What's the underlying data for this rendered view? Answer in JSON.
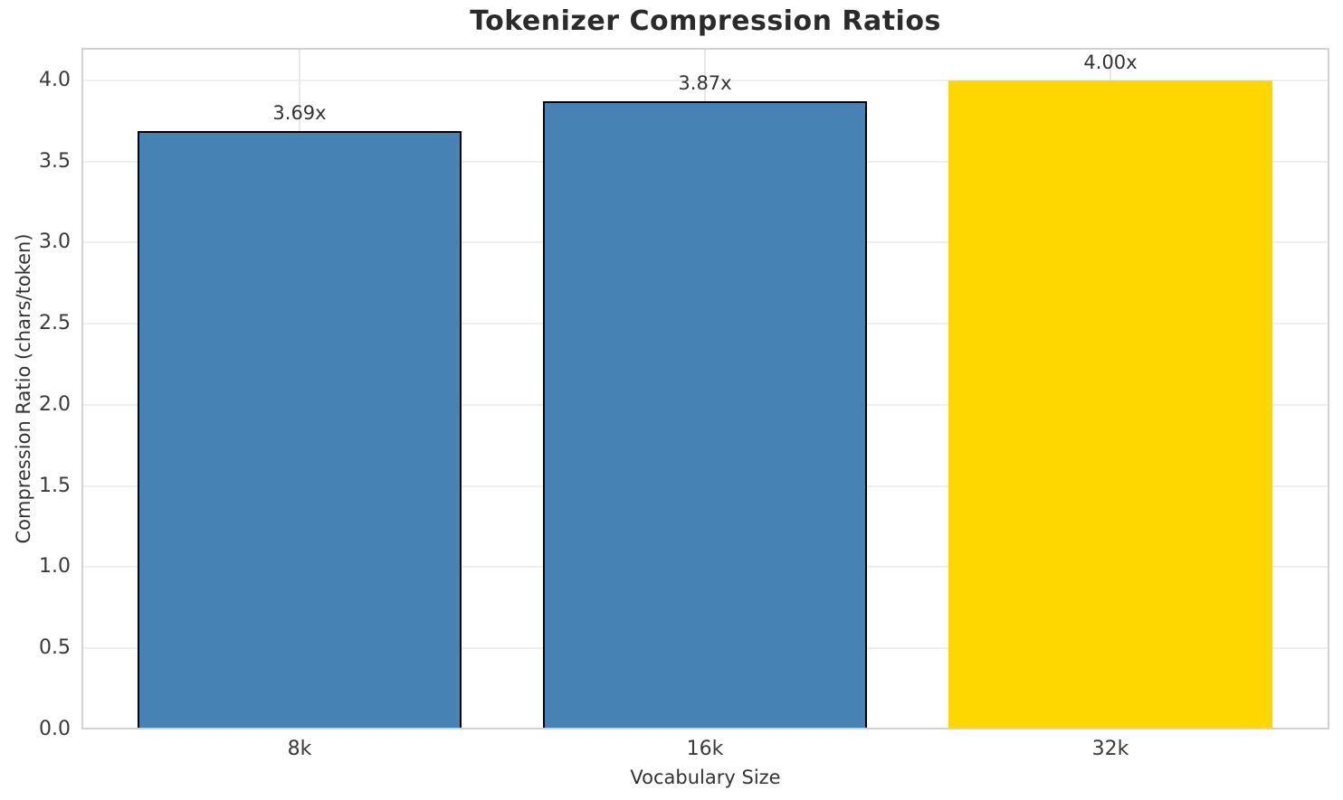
{
  "chart_data": {
    "type": "bar",
    "title": "Tokenizer Compression Ratios",
    "xlabel": "Vocabulary Size",
    "ylabel": "Compression Ratio (chars/token)",
    "categories": [
      "8k",
      "16k",
      "32k"
    ],
    "values": [
      3.69,
      3.87,
      4.0
    ],
    "bar_labels": [
      "3.69x",
      "3.87x",
      "4.00x"
    ],
    "bar_colors": [
      "#4682B4",
      "#4682B4",
      "#FFD700"
    ],
    "bar_edge_colors": [
      "#000000",
      "#000000",
      "none"
    ],
    "ytick_labels": [
      "0.0",
      "0.5",
      "1.0",
      "1.5",
      "2.0",
      "2.5",
      "3.0",
      "3.5",
      "4.0"
    ],
    "yticks": [
      0.0,
      0.5,
      1.0,
      1.5,
      2.0,
      2.5,
      3.0,
      3.5,
      4.0
    ],
    "ylim": [
      0,
      4.2
    ],
    "grid": true,
    "legend_position": "none"
  },
  "colors": {
    "grid_h": "#efefef",
    "grid_v": "#e9e9e9",
    "spine": "#d2d2d2",
    "text": "#333333",
    "title_text": "#2b2b2b",
    "background": "#ffffff"
  }
}
